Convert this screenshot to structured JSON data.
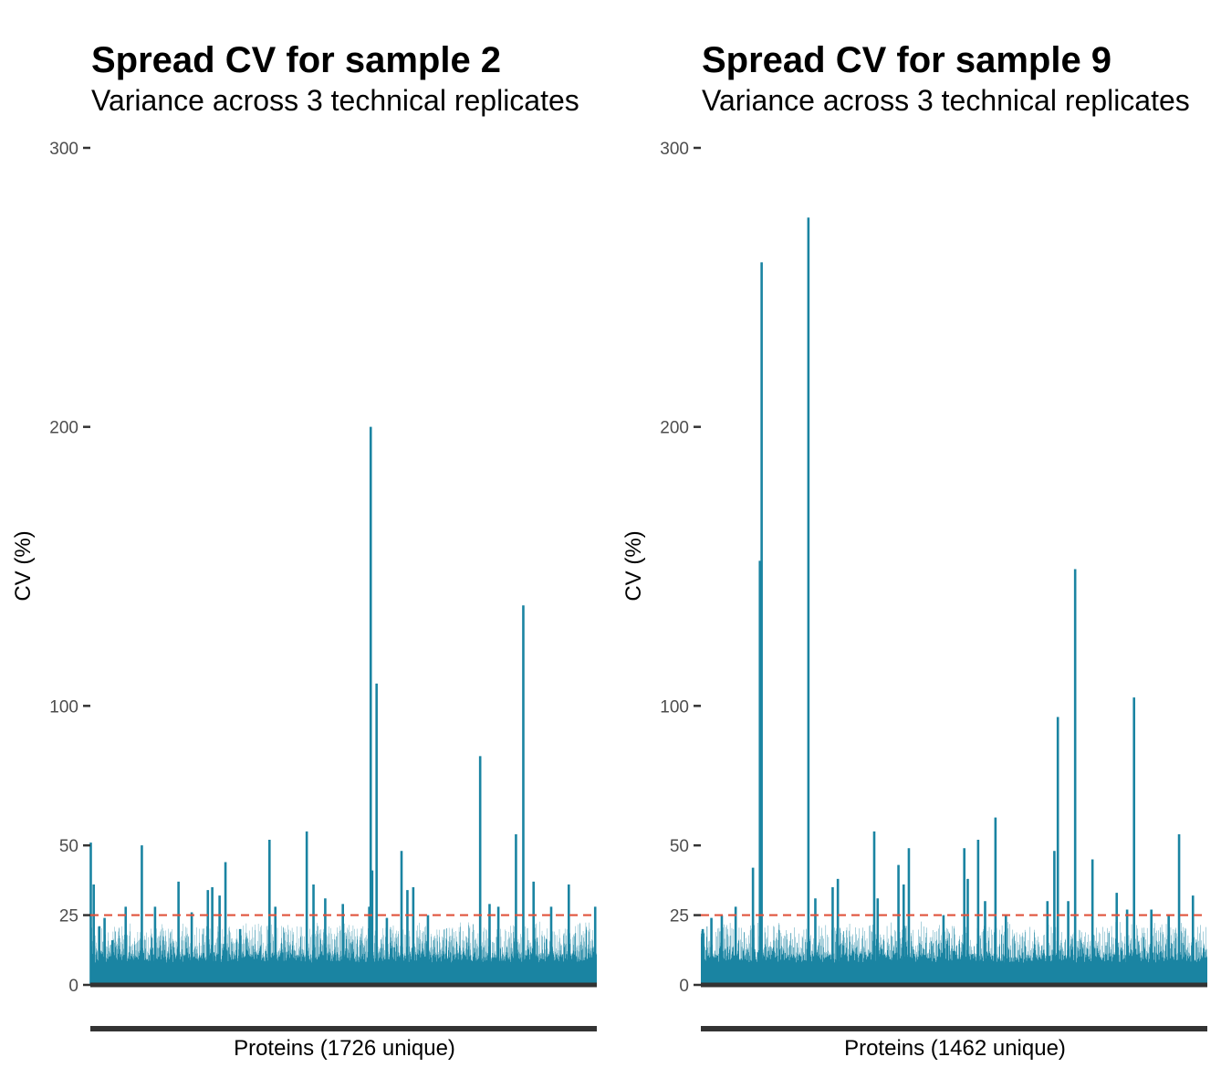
{
  "chart_data": [
    {
      "type": "bar",
      "title": "Spread CV for sample 2",
      "subtitle": "Variance across 3 technical replicates",
      "xlabel": "Proteins (1726 unique)",
      "ylabel": "CV (%)",
      "ylim": [
        0,
        300
      ],
      "yticks": [
        0,
        25,
        50,
        100,
        200,
        300
      ],
      "threshold": 25,
      "bar_color": "#1a84a2",
      "threshold_color": "#e0533c",
      "n_proteins": 1726,
      "grid": false,
      "spikes": [
        {
          "x": 1,
          "y": 51
        },
        {
          "x": 11,
          "y": 36
        },
        {
          "x": 30,
          "y": 21
        },
        {
          "x": 48,
          "y": 24
        },
        {
          "x": 75,
          "y": 16
        },
        {
          "x": 120,
          "y": 28
        },
        {
          "x": 175,
          "y": 50
        },
        {
          "x": 220,
          "y": 28
        },
        {
          "x": 300,
          "y": 37
        },
        {
          "x": 345,
          "y": 26
        },
        {
          "x": 400,
          "y": 34
        },
        {
          "x": 415,
          "y": 35
        },
        {
          "x": 440,
          "y": 32
        },
        {
          "x": 460,
          "y": 44
        },
        {
          "x": 510,
          "y": 20
        },
        {
          "x": 610,
          "y": 52
        },
        {
          "x": 630,
          "y": 28
        },
        {
          "x": 737,
          "y": 55
        },
        {
          "x": 760,
          "y": 36
        },
        {
          "x": 800,
          "y": 31
        },
        {
          "x": 860,
          "y": 29
        },
        {
          "x": 950,
          "y": 28
        },
        {
          "x": 955,
          "y": 200
        },
        {
          "x": 960,
          "y": 41
        },
        {
          "x": 975,
          "y": 108
        },
        {
          "x": 1010,
          "y": 24
        },
        {
          "x": 1060,
          "y": 48
        },
        {
          "x": 1080,
          "y": 34
        },
        {
          "x": 1100,
          "y": 35
        },
        {
          "x": 1150,
          "y": 25
        },
        {
          "x": 1328,
          "y": 82
        },
        {
          "x": 1360,
          "y": 29
        },
        {
          "x": 1390,
          "y": 28
        },
        {
          "x": 1450,
          "y": 54
        },
        {
          "x": 1475,
          "y": 136
        },
        {
          "x": 1510,
          "y": 37
        },
        {
          "x": 1570,
          "y": 28
        },
        {
          "x": 1630,
          "y": 36
        },
        {
          "x": 1720,
          "y": 28
        }
      ]
    },
    {
      "type": "bar",
      "title": "Spread CV for sample 9",
      "subtitle": "Variance across 3 technical replicates",
      "xlabel": "Proteins (1462 unique)",
      "ylabel": "CV (%)",
      "ylim": [
        0,
        300
      ],
      "yticks": [
        0,
        25,
        50,
        100,
        200,
        300
      ],
      "threshold": 25,
      "bar_color": "#1a84a2",
      "threshold_color": "#e0533c",
      "n_proteins": 1462,
      "grid": false,
      "spikes": [
        {
          "x": 5,
          "y": 20
        },
        {
          "x": 30,
          "y": 24
        },
        {
          "x": 60,
          "y": 25
        },
        {
          "x": 100,
          "y": 28
        },
        {
          "x": 150,
          "y": 42
        },
        {
          "x": 170,
          "y": 152
        },
        {
          "x": 175,
          "y": 259
        },
        {
          "x": 310,
          "y": 275
        },
        {
          "x": 330,
          "y": 31
        },
        {
          "x": 380,
          "y": 35
        },
        {
          "x": 395,
          "y": 38
        },
        {
          "x": 500,
          "y": 55
        },
        {
          "x": 510,
          "y": 31
        },
        {
          "x": 570,
          "y": 43
        },
        {
          "x": 585,
          "y": 36
        },
        {
          "x": 600,
          "y": 49
        },
        {
          "x": 700,
          "y": 25
        },
        {
          "x": 760,
          "y": 49
        },
        {
          "x": 770,
          "y": 38
        },
        {
          "x": 800,
          "y": 52
        },
        {
          "x": 820,
          "y": 30
        },
        {
          "x": 850,
          "y": 60
        },
        {
          "x": 880,
          "y": 25
        },
        {
          "x": 1000,
          "y": 30
        },
        {
          "x": 1020,
          "y": 48
        },
        {
          "x": 1030,
          "y": 96
        },
        {
          "x": 1060,
          "y": 30
        },
        {
          "x": 1080,
          "y": 149
        },
        {
          "x": 1130,
          "y": 45
        },
        {
          "x": 1200,
          "y": 33
        },
        {
          "x": 1230,
          "y": 27
        },
        {
          "x": 1250,
          "y": 103
        },
        {
          "x": 1300,
          "y": 27
        },
        {
          "x": 1350,
          "y": 25
        },
        {
          "x": 1380,
          "y": 54
        },
        {
          "x": 1420,
          "y": 32
        }
      ]
    }
  ]
}
